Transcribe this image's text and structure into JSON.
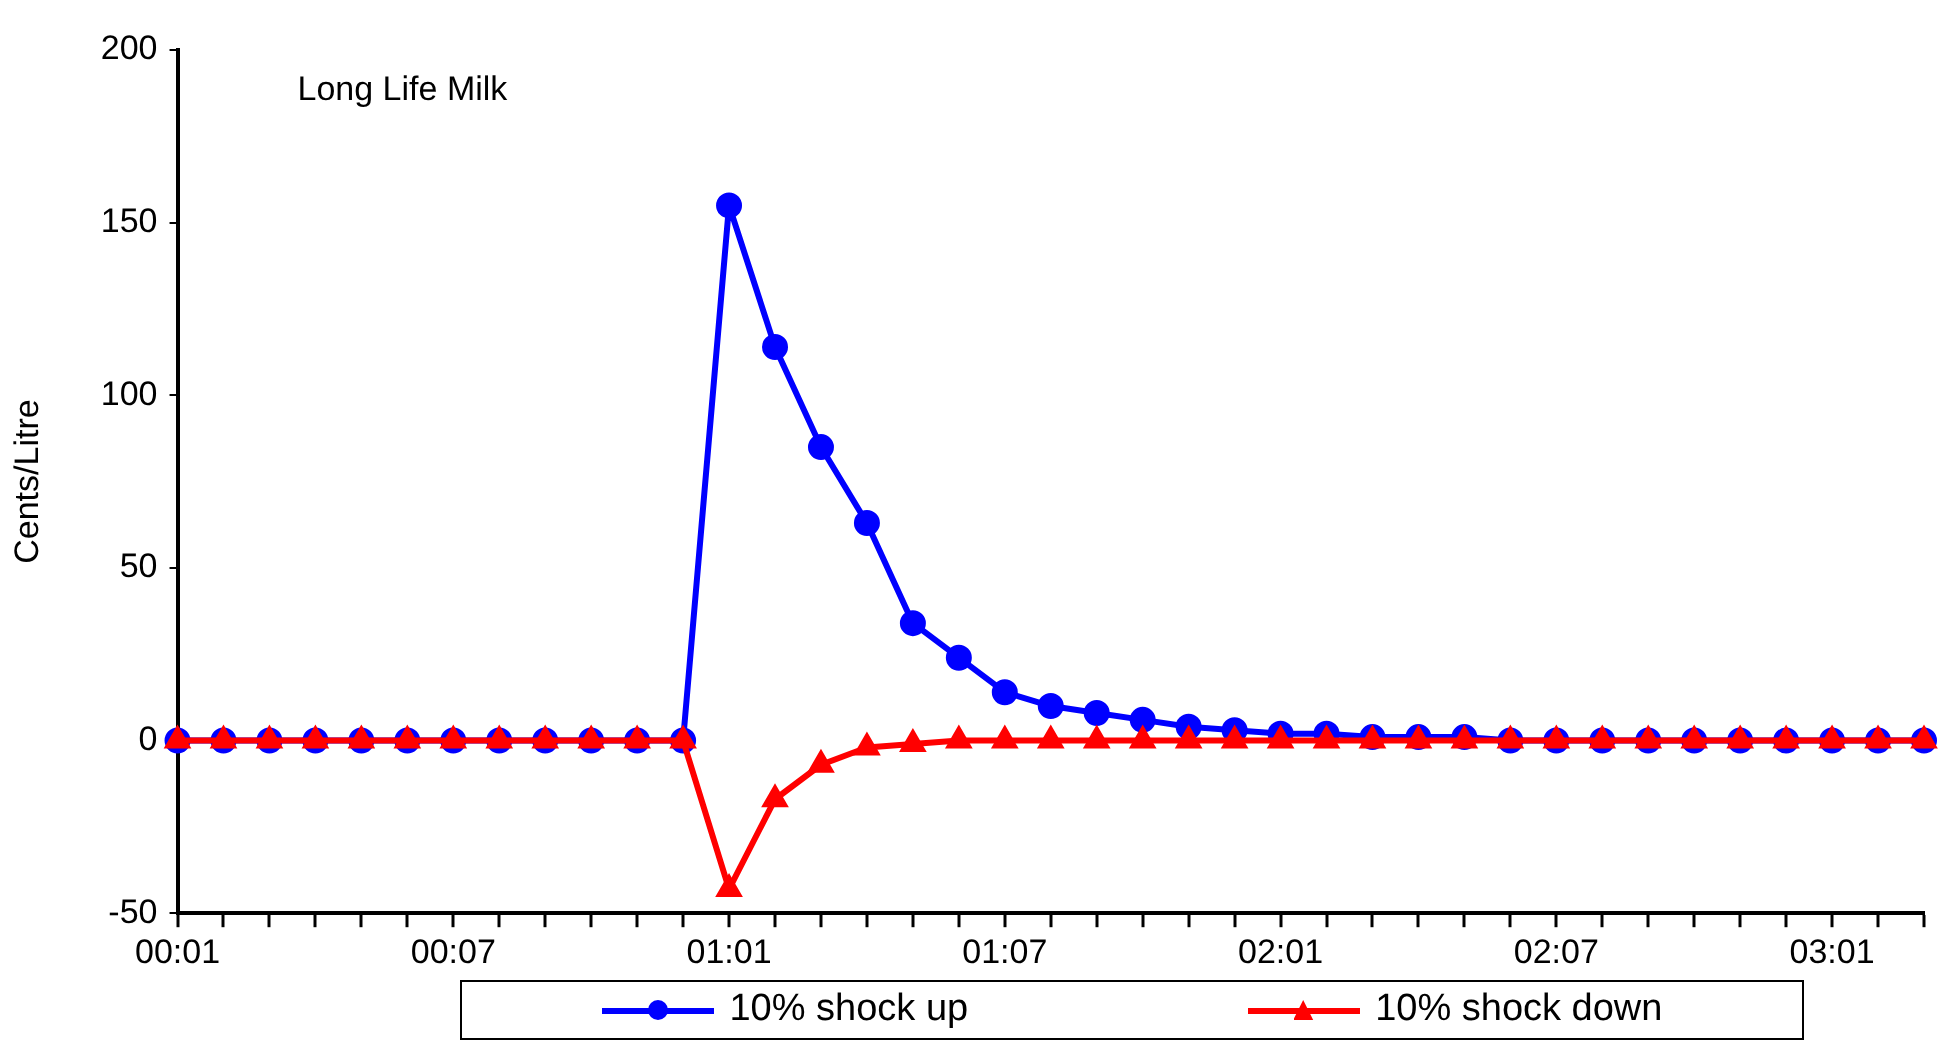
{
  "chart_data": {
    "type": "line",
    "title": "Long Life Milk",
    "ylabel": "Cents/Litre",
    "categories": [
      "00:01",
      null,
      null,
      null,
      null,
      null,
      "00:07",
      null,
      null,
      null,
      null,
      null,
      "01:01",
      null,
      null,
      null,
      null,
      null,
      "01:07",
      null,
      null,
      null,
      null,
      null,
      "02:01",
      null,
      null,
      null,
      null,
      null,
      "02:07",
      null,
      null,
      null,
      null,
      null,
      "03:01",
      null,
      null
    ],
    "ylim": [
      -50,
      200
    ],
    "yticks": [
      -50,
      0,
      50,
      100,
      150,
      200
    ],
    "grid": false,
    "legend": "bottom",
    "series": [
      {
        "name": "10% shock up",
        "color": "#0000ff",
        "marker": "circle",
        "values": [
          0,
          0,
          0,
          0,
          0,
          0,
          0,
          0,
          0,
          0,
          0,
          0,
          155,
          114,
          85,
          63,
          34,
          24,
          14,
          10,
          8,
          6,
          4,
          3,
          2,
          2,
          1,
          1,
          1,
          0,
          0,
          0,
          0,
          0,
          0,
          0,
          0,
          0,
          0
        ]
      },
      {
        "name": "10% shock down",
        "color": "#ff0000",
        "marker": "triangle",
        "values": [
          0,
          0,
          0,
          0,
          0,
          0,
          0,
          0,
          0,
          0,
          0,
          0,
          -43,
          -17,
          -7,
          -2,
          -1,
          0,
          0,
          0,
          0,
          0,
          0,
          0,
          0,
          0,
          0,
          0,
          0,
          0,
          0,
          0,
          0,
          0,
          0,
          0,
          0,
          0,
          0
        ]
      }
    ]
  }
}
